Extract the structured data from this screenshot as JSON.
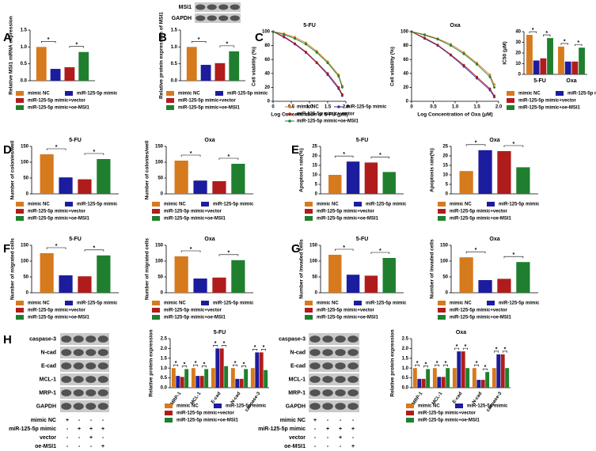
{
  "panel_labels": [
    "A",
    "B",
    "C",
    "D",
    "E",
    "F",
    "G",
    "H"
  ],
  "blots": [
    {
      "bands": [
        "MSI1",
        "GAPDH"
      ]
    },
    {
      "bands": [
        "caspase-3",
        "N-cad",
        "E-cad",
        "MCL-1",
        "MRP-1",
        "GAPDH"
      ],
      "conditions": [
        {
          "name": "mimic NC",
          "marks": [
            "+",
            "-",
            "-",
            "-"
          ]
        },
        {
          "name": "miR-125-5p mimic",
          "marks": [
            "-",
            "+",
            "+",
            "+"
          ]
        },
        {
          "name": "vector",
          "marks": [
            "-",
            "-",
            "+",
            "-"
          ]
        },
        {
          "name": "oe-MSI1",
          "marks": [
            "-",
            "-",
            "-",
            "+"
          ]
        }
      ]
    },
    {
      "bands": [
        "caspase-3",
        "N-cad",
        "E-cad",
        "MCL-1",
        "MRP-1",
        "GAPDH"
      ],
      "conditions": [
        {
          "name": "mimic NC",
          "marks": [
            "+",
            "-",
            "-",
            "-"
          ]
        },
        {
          "name": "miR-125-5p mimic",
          "marks": [
            "-",
            "+",
            "+",
            "+"
          ]
        },
        {
          "name": "vector",
          "marks": [
            "-",
            "-",
            "+",
            "-"
          ]
        },
        {
          "name": "oe-MSI1",
          "marks": [
            "-",
            "-",
            "-",
            "+"
          ]
        }
      ]
    }
  ],
  "chart_data": [
    {
      "type": "bar",
      "y_label": "Relative MSI1 mRNA expression",
      "ylim": [
        0,
        1.5
      ],
      "yticks": [
        {
          "value": 0,
          "label": "0.0"
        },
        0.5,
        {
          "value": 1,
          "label": "1.0"
        },
        1.5
      ],
      "annotations": [
        "*",
        "*"
      ],
      "series": [
        {
          "name": "mimic NC",
          "color": "#d67a1e",
          "values": [
            1.0
          ]
        },
        {
          "name": "miR-125-5p mimic",
          "color": "#1c1c9e",
          "values": [
            0.35
          ]
        },
        {
          "name": "miR-125-5p mimic+vector",
          "color": "#b01c1c",
          "values": [
            0.4
          ]
        },
        {
          "name": "miR-125-5p mimic+oe-MSI1",
          "color": "#1f7f2e",
          "values": [
            0.85
          ]
        }
      ]
    },
    {
      "type": "bar",
      "y_label": "Relative protein expression of MSI1",
      "ylim": [
        0,
        1.5
      ],
      "yticks": [
        {
          "value": 0,
          "label": "0.0"
        },
        0.5,
        {
          "value": 1,
          "label": "1.0"
        },
        1.5
      ],
      "annotations": [
        "*",
        "*"
      ],
      "series": [
        {
          "name": "mimic NC",
          "color": "#d67a1e",
          "values": [
            1.0
          ]
        },
        {
          "name": "miR-125-5p mimic",
          "color": "#1c1c9e",
          "values": [
            0.47
          ]
        },
        {
          "name": "miR-125-5p mimic+vector",
          "color": "#b01c1c",
          "values": [
            0.52
          ]
        },
        {
          "name": "miR-125-5p mimic+oe-MSI1",
          "color": "#1f7f2e",
          "values": [
            0.87
          ]
        }
      ]
    },
    {
      "type": "line",
      "title": "5-FU",
      "x_label": "Log Concentration of 5-FU (μM)",
      "y_label": "Cell viability (%)",
      "x": [
        0,
        0.3,
        0.6,
        0.9,
        1.2,
        1.5,
        1.8,
        1.9
      ],
      "xlim": [
        0,
        2
      ],
      "xticks": [
        0,
        0.5,
        {
          "value": 1,
          "label": "1.0"
        },
        1.5,
        {
          "value": 2,
          "label": "2.0"
        }
      ],
      "ylim": [
        0,
        100
      ],
      "yticks": [
        0,
        20,
        40,
        60,
        80,
        100
      ],
      "legend": true,
      "series": [
        {
          "name": "mimic NC",
          "color": "#d67a1e",
          "values": [
            100,
            97,
            92,
            84,
            72,
            57,
            38,
            22
          ]
        },
        {
          "name": "miR-125-5p mimic",
          "color": "#3a2f9e",
          "values": [
            100,
            92,
            82,
            70,
            55,
            38,
            18,
            8
          ]
        },
        {
          "name": "miR-125-5p mimic+vector",
          "color": "#b01c1c",
          "values": [
            100,
            93,
            83,
            71,
            56,
            40,
            20,
            10
          ]
        },
        {
          "name": "miR-125-5p mimic+oe-MSI1",
          "color": "#1f7f2e",
          "values": [
            100,
            96,
            90,
            82,
            70,
            55,
            36,
            20
          ]
        }
      ]
    },
    {
      "type": "line",
      "title": "Oxa",
      "x_label": "Log Concentration of Oxa (μM)",
      "y_label": "Cell viability (%)",
      "x": [
        0,
        0.3,
        0.6,
        0.9,
        1.2,
        1.5,
        1.8,
        1.9
      ],
      "xlim": [
        0,
        2
      ],
      "xticks": [
        0,
        0.5,
        {
          "value": 1,
          "label": "1.0"
        },
        1.5,
        {
          "value": 2,
          "label": "2.0"
        }
      ],
      "ylim": [
        0,
        100
      ],
      "yticks": [
        0,
        20,
        40,
        60,
        80,
        100
      ],
      "legend": false,
      "series": [
        {
          "color": "#d67a1e",
          "values": [
            100,
            96,
            90,
            82,
            70,
            55,
            38,
            24
          ]
        },
        {
          "color": "#3a2f9e",
          "values": [
            100,
            90,
            80,
            66,
            50,
            33,
            16,
            6
          ]
        },
        {
          "color": "#b01c1c",
          "values": [
            100,
            91,
            81,
            67,
            52,
            35,
            18,
            8
          ]
        },
        {
          "color": "#1f7f2e",
          "values": [
            100,
            95,
            89,
            80,
            68,
            53,
            35,
            20
          ]
        }
      ]
    },
    {
      "type": "bar",
      "y_label": "IC50 (μM)",
      "categories": [
        "5-FU",
        "Oxa"
      ],
      "ylim": [
        0,
        40
      ],
      "yticks": [
        0,
        10,
        20,
        30,
        40
      ],
      "annotations": [
        "*",
        "*",
        "*",
        "*"
      ],
      "series": [
        {
          "name": "mimic NC",
          "color": "#d67a1e",
          "values": [
            37,
            26
          ]
        },
        {
          "name": "miR-125-5p mimic",
          "color": "#1c1c9e",
          "values": [
            13,
            12
          ]
        },
        {
          "name": "miR-125-5p mimic+vector",
          "color": "#b01c1c",
          "values": [
            15,
            12
          ]
        },
        {
          "name": "miR-125-5p mimic+oe-MSI1",
          "color": "#1f7f2e",
          "values": [
            34,
            25
          ]
        }
      ]
    },
    {
      "type": "bar",
      "title": "5-FU",
      "y_label": "Number of colonies/well",
      "ylim": [
        0,
        150
      ],
      "yticks": [
        0,
        50,
        100,
        150
      ],
      "annotations": [
        "*",
        "*"
      ],
      "series": [
        {
          "name": "mimic NC",
          "color": "#d67a1e",
          "values": [
            125
          ]
        },
        {
          "name": "miR-125-5p mimic",
          "color": "#1c1c9e",
          "values": [
            52
          ]
        },
        {
          "name": "miR-125-5p mimic+vector",
          "color": "#b01c1c",
          "values": [
            46
          ]
        },
        {
          "name": "miR-125-5p mimic+oe-MSI1",
          "color": "#1f7f2e",
          "values": [
            110
          ]
        }
      ]
    },
    {
      "type": "bar",
      "title": "Oxa",
      "y_label": "Number of colonies/well",
      "ylim": [
        0,
        150
      ],
      "yticks": [
        0,
        50,
        100,
        150
      ],
      "annotations": [
        "*",
        "*"
      ],
      "series": [
        {
          "name": "mimic NC",
          "color": "#d67a1e",
          "values": [
            105
          ]
        },
        {
          "name": "miR-125-5p mimic",
          "color": "#1c1c9e",
          "values": [
            42
          ]
        },
        {
          "name": "miR-125-5p mimic+vector",
          "color": "#b01c1c",
          "values": [
            40
          ]
        },
        {
          "name": "miR-125-5p mimic+oe-MSI1",
          "color": "#1f7f2e",
          "values": [
            95
          ]
        }
      ]
    },
    {
      "type": "bar",
      "title": "5-FU",
      "y_label": "Apoptosis rate(%)",
      "ylim": [
        0,
        25
      ],
      "yticks": [
        0,
        5,
        10,
        15,
        20,
        25
      ],
      "annotations": [
        "*",
        "*"
      ],
      "series": [
        {
          "name": "mimic NC",
          "color": "#d67a1e",
          "values": [
            10
          ]
        },
        {
          "name": "miR-125-5p mimic",
          "color": "#1c1c9e",
          "values": [
            17
          ]
        },
        {
          "name": "miR-125-5p mimic+vector",
          "color": "#b01c1c",
          "values": [
            16.5
          ]
        },
        {
          "name": "miR-125-5p mimic+oe-MSI1",
          "color": "#1f7f2e",
          "values": [
            11.5
          ]
        }
      ]
    },
    {
      "type": "bar",
      "title": "Oxa",
      "y_label": "Apoptosis rate(%)",
      "ylim": [
        0,
        25
      ],
      "yticks": [
        0,
        5,
        10,
        15,
        20,
        25
      ],
      "annotations": [
        "*",
        "*"
      ],
      "series": [
        {
          "name": "mimic NC",
          "color": "#d67a1e",
          "values": [
            12
          ]
        },
        {
          "name": "miR-125-5p mimic",
          "color": "#1c1c9e",
          "values": [
            23
          ]
        },
        {
          "name": "miR-125-5p mimic+vector",
          "color": "#b01c1c",
          "values": [
            22.5
          ]
        },
        {
          "name": "miR-125-5p mimic+oe-MSI1",
          "color": "#1f7f2e",
          "values": [
            14
          ]
        }
      ]
    },
    {
      "type": "bar",
      "title": "5-FU",
      "y_label": "Number of migrated cells",
      "ylim": [
        0,
        150
      ],
      "yticks": [
        0,
        50,
        100,
        150
      ],
      "annotations": [
        "*",
        "*"
      ],
      "series": [
        {
          "name": "mimic NC",
          "color": "#d67a1e",
          "values": [
            125
          ]
        },
        {
          "name": "miR-125-5p mimic",
          "color": "#1c1c9e",
          "values": [
            55
          ]
        },
        {
          "name": "miR-125-5p mimic+vector",
          "color": "#b01c1c",
          "values": [
            52
          ]
        },
        {
          "name": "miR-125-5p mimic+oe-MSI1",
          "color": "#1f7f2e",
          "values": [
            118
          ]
        }
      ]
    },
    {
      "type": "bar",
      "title": "Oxa",
      "y_label": "Number of migrated cells",
      "ylim": [
        0,
        150
      ],
      "yticks": [
        0,
        50,
        100,
        150
      ],
      "annotations": [
        "*",
        "*"
      ],
      "series": [
        {
          "name": "mimic NC",
          "color": "#d67a1e",
          "values": [
            115
          ]
        },
        {
          "name": "miR-125-5p mimic",
          "color": "#1c1c9e",
          "values": [
            45
          ]
        },
        {
          "name": "miR-125-5p mimic+vector",
          "color": "#b01c1c",
          "values": [
            48
          ]
        },
        {
          "name": "miR-125-5p mimic+oe-MSI1",
          "color": "#1f7f2e",
          "values": [
            103
          ]
        }
      ]
    },
    {
      "type": "bar",
      "title": "5-FU",
      "y_label": "Number of invaded cells",
      "ylim": [
        0,
        150
      ],
      "yticks": [
        0,
        50,
        100,
        150
      ],
      "annotations": [
        "*",
        "*"
      ],
      "series": [
        {
          "name": "mimic NC",
          "color": "#d67a1e",
          "values": [
            120
          ]
        },
        {
          "name": "miR-125-5p mimic",
          "color": "#1c1c9e",
          "values": [
            57
          ]
        },
        {
          "name": "miR-125-5p mimic+vector",
          "color": "#b01c1c",
          "values": [
            54
          ]
        },
        {
          "name": "miR-125-5p mimic+oe-MSI1",
          "color": "#1f7f2e",
          "values": [
            110
          ]
        }
      ]
    },
    {
      "type": "bar",
      "title": "Oxa",
      "y_label": "Number of invaded cells",
      "ylim": [
        0,
        150
      ],
      "yticks": [
        0,
        50,
        100,
        150
      ],
      "annotations": [
        "*",
        "*"
      ],
      "series": [
        {
          "name": "mimic NC",
          "color": "#d67a1e",
          "values": [
            112
          ]
        },
        {
          "name": "miR-125-5p mimic",
          "color": "#1c1c9e",
          "values": [
            40
          ]
        },
        {
          "name": "miR-125-5p mimic+vector",
          "color": "#b01c1c",
          "values": [
            44
          ]
        },
        {
          "name": "miR-125-5p mimic+oe-MSI1",
          "color": "#1f7f2e",
          "values": [
            97
          ]
        }
      ]
    },
    {
      "type": "bar",
      "title": "5-FU",
      "y_label": "Relative protein expression",
      "categories": [
        "MRP-1",
        "MCL-1",
        "E-cad",
        "N-cad",
        "caspase-3"
      ],
      "ylim": [
        0,
        2.5
      ],
      "yticks": [
        {
          "value": 0,
          "label": "0.0"
        },
        0.5,
        {
          "value": 1,
          "label": "1.0"
        },
        1.5,
        {
          "value": 2,
          "label": "2.0"
        },
        2.5
      ],
      "annotations": [
        "*",
        "*",
        "*",
        "*",
        "*",
        "*",
        "*",
        "*",
        "*",
        "*"
      ],
      "series": [
        {
          "name": "mimic NC",
          "color": "#d67a1e",
          "values": [
            1.0,
            1.0,
            1.0,
            1.0,
            1.0
          ]
        },
        {
          "name": "miR-125-5p mimic",
          "color": "#1c1c9e",
          "values": [
            0.6,
            0.6,
            2.0,
            0.45,
            1.8
          ]
        },
        {
          "name": "miR-125-5p mimic+vector",
          "color": "#b01c1c",
          "values": [
            0.55,
            0.6,
            2.0,
            0.45,
            1.8
          ]
        },
        {
          "name": "miR-125-5p mimic+oe-MSI1",
          "color": "#1f7f2e",
          "values": [
            0.95,
            0.95,
            1.1,
            0.95,
            0.9
          ]
        }
      ]
    },
    {
      "type": "bar",
      "title": "Oxa",
      "y_label": "Relative protein expression",
      "categories": [
        "MRP-1",
        "MCL-1",
        "E-cad",
        "N-cad",
        "caspase-3"
      ],
      "ylim": [
        0,
        2.5
      ],
      "yticks": [
        {
          "value": 0,
          "label": "0.0"
        },
        0.5,
        {
          "value": 1,
          "label": "1.0"
        },
        1.5,
        {
          "value": 2,
          "label": "2.0"
        },
        2.5
      ],
      "annotations": [
        "*",
        "*",
        "*",
        "*",
        "*",
        "*",
        "*",
        "*",
        "*",
        "*"
      ],
      "series": [
        {
          "name": "mimic NC",
          "color": "#d67a1e",
          "values": [
            1.0,
            1.0,
            1.0,
            1.0,
            1.0
          ]
        },
        {
          "name": "miR-125-5p mimic",
          "color": "#1c1c9e",
          "values": [
            0.45,
            0.55,
            1.85,
            0.4,
            1.7
          ]
        },
        {
          "name": "miR-125-5p mimic+vector",
          "color": "#b01c1c",
          "values": [
            0.45,
            0.55,
            1.85,
            0.4,
            1.7
          ]
        },
        {
          "name": "miR-125-5p mimic+oe-MSI1",
          "color": "#1f7f2e",
          "values": [
            0.95,
            1.0,
            1.0,
            0.8,
            1.0
          ]
        }
      ]
    }
  ]
}
